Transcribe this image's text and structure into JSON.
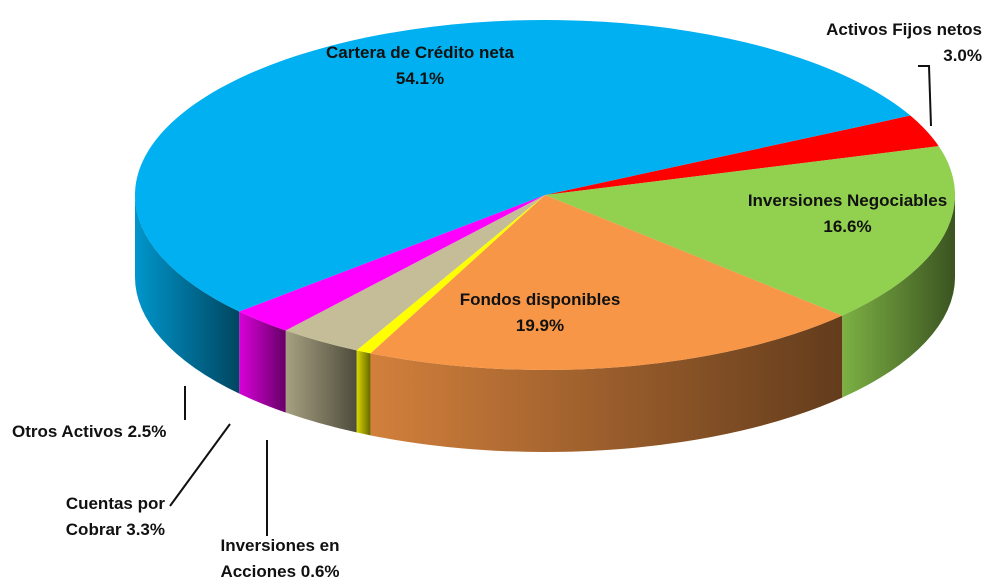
{
  "chart_data": {
    "type": "pie",
    "categories": [
      "Activos Fijos netos",
      "Inversiones Negociables",
      "Fondos disponibles",
      "Inversiones en Acciones",
      "Cuentas por Cobrar",
      "Otros Activos",
      "Cartera de Crédito neta"
    ],
    "values": [
      3.0,
      16.6,
      19.9,
      0.6,
      3.3,
      2.5,
      54.1
    ],
    "value_labels": [
      "3.0%",
      "16.6%",
      "19.9%",
      "0.6%",
      "3.3%",
      "2.5%",
      "54.1%"
    ],
    "colors": [
      "#ff0000",
      "#92d050",
      "#f79646",
      "#ffff00",
      "#c4bd97",
      "#ff00ff",
      "#00b0f0"
    ]
  }
}
